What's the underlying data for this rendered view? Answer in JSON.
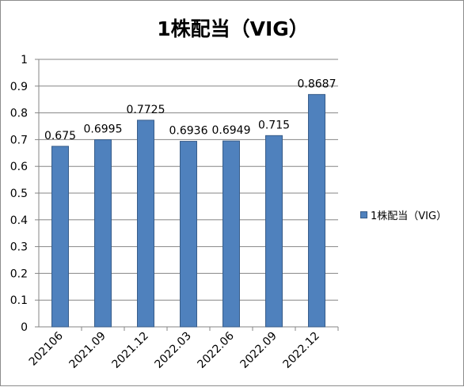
{
  "chart_data": {
    "type": "bar",
    "title": "1株配当（VIG）",
    "categories": [
      "202106",
      "2021.09",
      "2021.12",
      "2022.03",
      "2022.06",
      "2022.09",
      "2022.12"
    ],
    "series": [
      {
        "name": "1株配当（VIG）",
        "values": [
          0.675,
          0.6995,
          0.7725,
          0.6936,
          0.6949,
          0.715,
          0.8687
        ],
        "data_labels": [
          "0.675",
          "0.6995",
          "0.7725",
          "0.6936",
          "0.6949",
          "0.715",
          "0.8687"
        ],
        "color": "#4f81bd"
      }
    ],
    "y_ticks": [
      "0",
      "0.1",
      "0.2",
      "0.3",
      "0.4",
      "0.5",
      "0.6",
      "0.7",
      "0.8",
      "0.9",
      "1"
    ],
    "ylim": [
      0,
      1
    ],
    "grid": true,
    "legend_position": "right"
  }
}
